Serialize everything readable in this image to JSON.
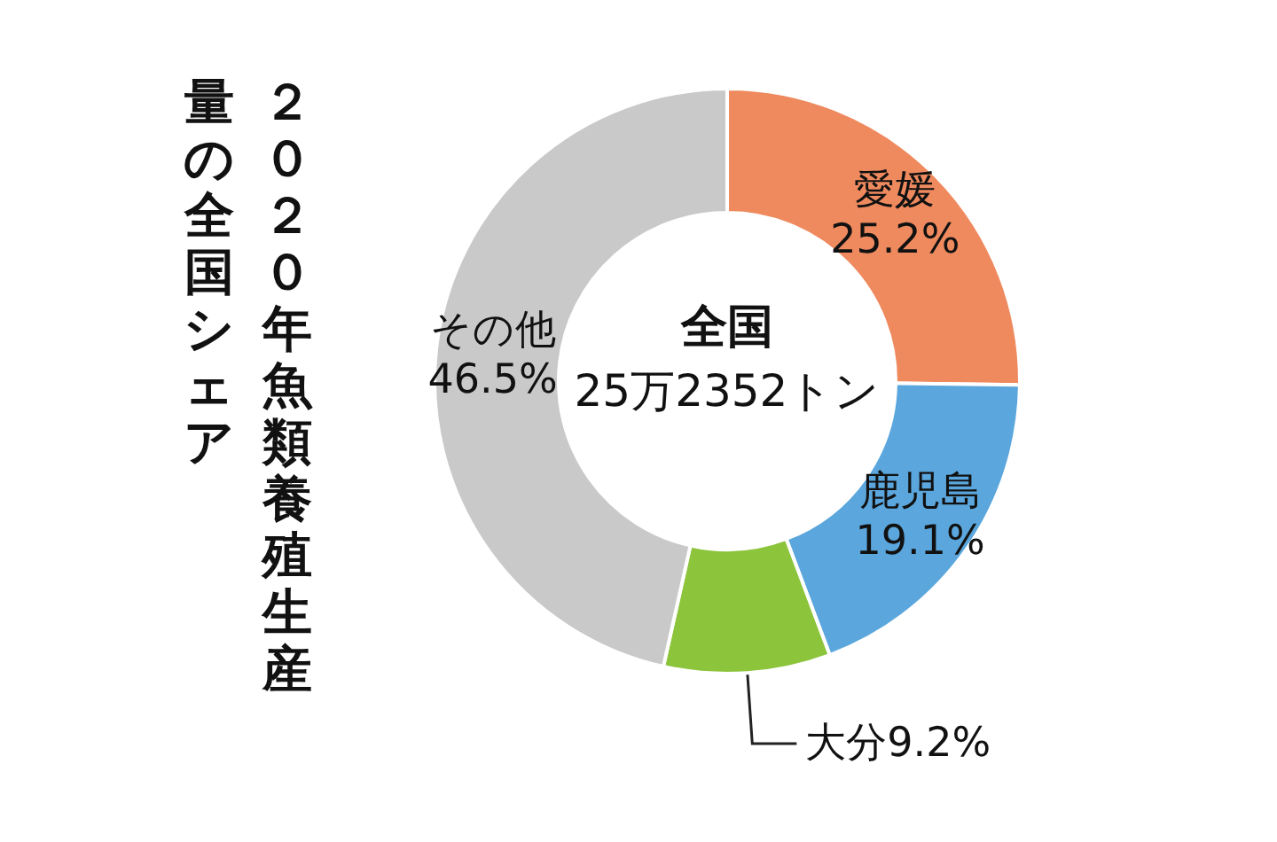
{
  "chart_data": {
    "type": "donut",
    "title": "２０２０年魚類養殖生産量の全国シェア",
    "annotations": [
      "全国",
      "25万2352トン"
    ],
    "categories": [
      "愛媛",
      "鹿児島",
      "大分",
      "その他"
    ],
    "values": [
      25.2,
      19.1,
      9.2,
      46.5
    ],
    "value_labels": [
      "25.2%",
      "19.1%",
      "9.2%",
      "46.5%"
    ],
    "colors": [
      "#ef8a5f",
      "#5ba7dd",
      "#8cc43c",
      "#c9c9c9"
    ],
    "legend": false
  }
}
